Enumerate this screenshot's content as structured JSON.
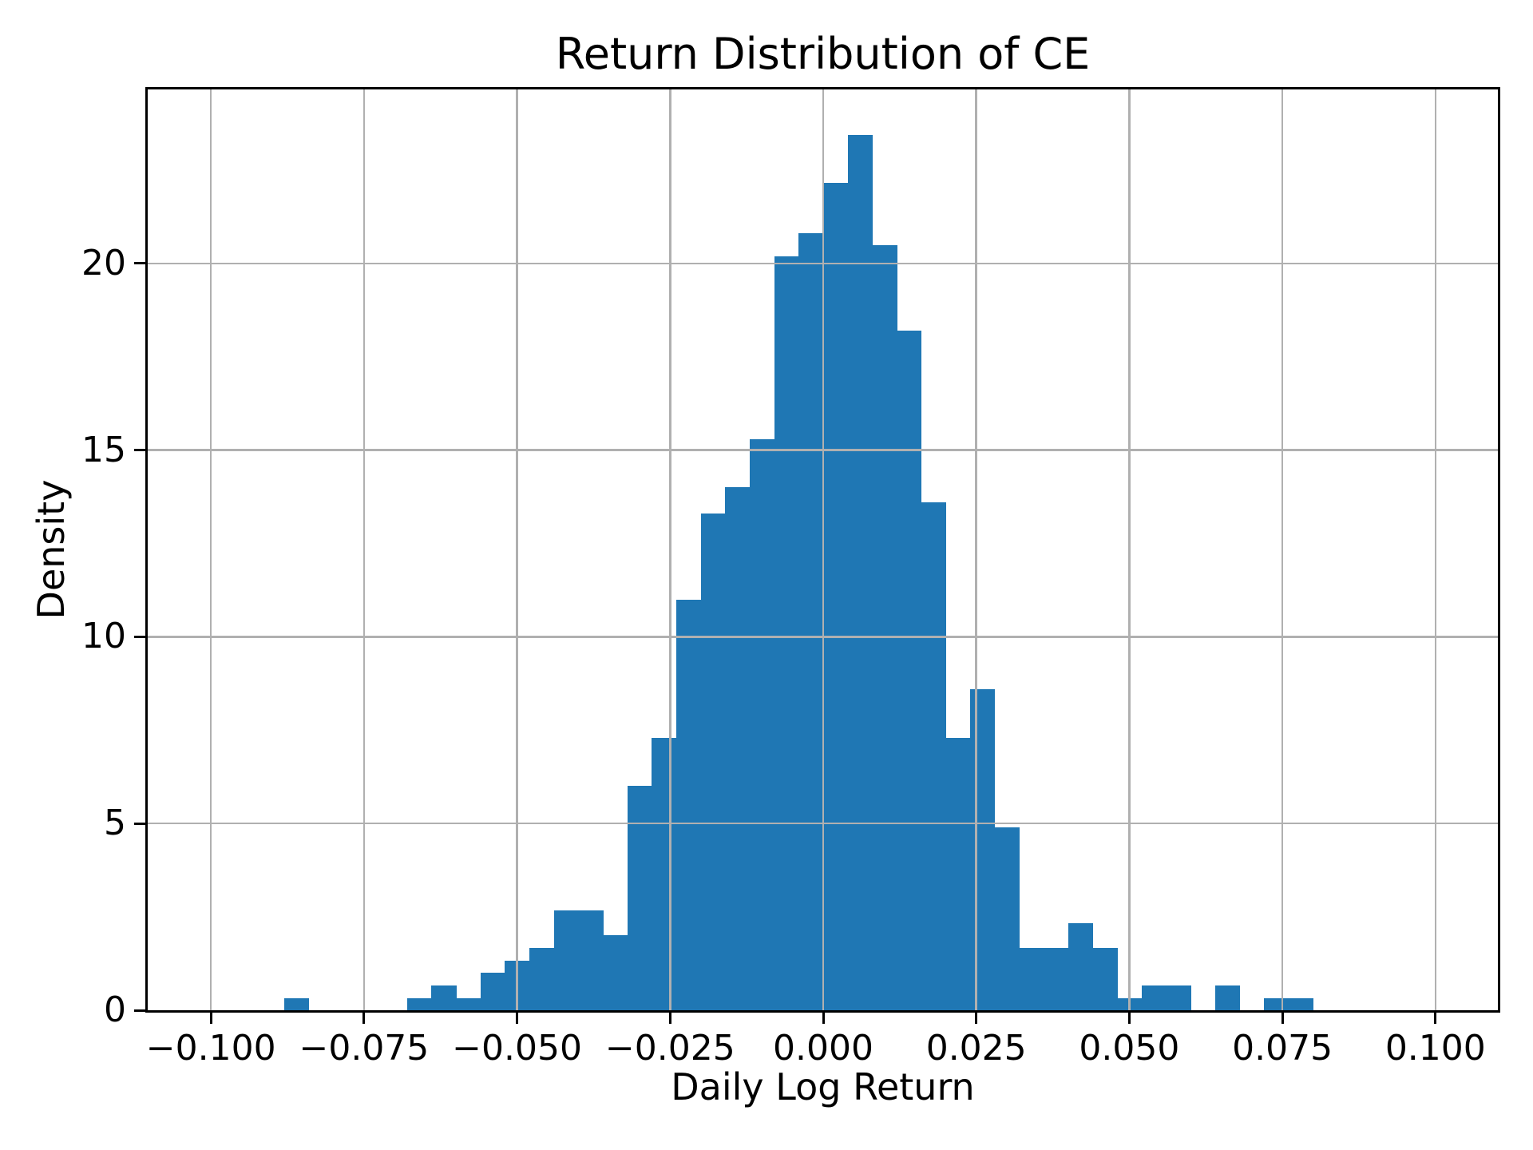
{
  "chart_data": {
    "type": "bar",
    "subtype": "histogram",
    "title": "Return Distribution of CE",
    "xlabel": "Daily Log Return",
    "ylabel": "Density",
    "bin_width": 0.004,
    "bin_left_edges": [
      -0.088,
      -0.084,
      -0.08,
      -0.076,
      -0.072,
      -0.068,
      -0.064,
      -0.06,
      -0.056,
      -0.052,
      -0.048,
      -0.044,
      -0.04,
      -0.036,
      -0.032,
      -0.028,
      -0.024,
      -0.02,
      -0.016,
      -0.012,
      -0.008,
      -0.004,
      0.0,
      0.004,
      0.008,
      0.012,
      0.016,
      0.02,
      0.024,
      0.028,
      0.032,
      0.036,
      0.04,
      0.044,
      0.048,
      0.052,
      0.056,
      0.06,
      0.064,
      0.068,
      0.072,
      0.076
    ],
    "densities": [
      0.33,
      0,
      0,
      0,
      0,
      0.33,
      0.67,
      0.33,
      1.0,
      1.33,
      1.67,
      2.67,
      2.67,
      2.0,
      6.0,
      7.3,
      11.0,
      13.3,
      14.0,
      15.3,
      20.2,
      20.8,
      22.15,
      23.45,
      20.5,
      18.2,
      13.6,
      7.3,
      8.6,
      4.9,
      1.67,
      1.67,
      2.33,
      1.67,
      0.33,
      0.67,
      0.67,
      0,
      0.67,
      0,
      0.33,
      0.33
    ],
    "xticks": {
      "values": [
        -0.1,
        -0.075,
        -0.05,
        -0.025,
        0.0,
        0.025,
        0.05,
        0.075,
        0.1
      ],
      "labels": [
        "−0.100",
        "−0.075",
        "−0.050",
        "−0.025",
        "0.000",
        "0.025",
        "0.050",
        "0.075",
        "0.100"
      ]
    },
    "yticks": {
      "values": [
        0,
        5,
        10,
        15,
        20
      ],
      "labels": [
        "0",
        "5",
        "10",
        "15",
        "20"
      ]
    },
    "xlim": [
      -0.1103,
      0.1102
    ],
    "ylim": [
      0,
      24.66
    ],
    "grid": true,
    "legend": null,
    "colors": {
      "bar": "#1f77b4",
      "grid": "#b0b0b0",
      "spine": "#000000",
      "text": "#000000",
      "background": "#ffffff"
    }
  }
}
